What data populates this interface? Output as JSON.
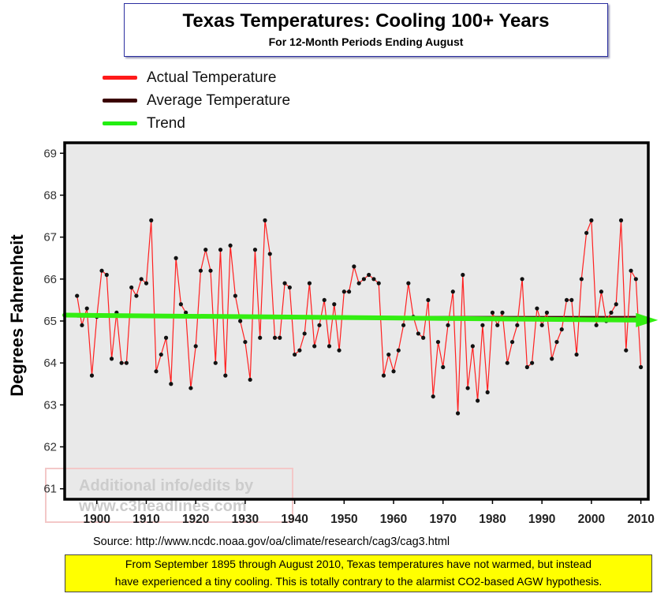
{
  "chart_data": {
    "type": "line",
    "title": "Texas Temperatures: Cooling 100+ Years",
    "subtitle": "For 12-Month Periods Ending August",
    "ylabel": "Degrees Fahrenheit",
    "xlabel": "",
    "ylim": [
      60.75,
      69.25
    ],
    "xlim": [
      1893.5,
      2011.5
    ],
    "yticks": [
      61,
      62,
      63,
      64,
      65,
      66,
      67,
      68,
      69
    ],
    "xticks": [
      1900,
      1910,
      1920,
      1930,
      1940,
      1950,
      1960,
      1970,
      1980,
      1990,
      2000,
      2010
    ],
    "grid": false,
    "legend_position": "top-left",
    "series": [
      {
        "name": "Actual Temperature",
        "color": "#ff2020",
        "x": [
          1896,
          1897,
          1898,
          1899,
          1900,
          1901,
          1902,
          1903,
          1904,
          1905,
          1906,
          1907,
          1908,
          1909,
          1910,
          1911,
          1912,
          1913,
          1914,
          1915,
          1916,
          1917,
          1918,
          1919,
          1920,
          1921,
          1922,
          1923,
          1924,
          1925,
          1926,
          1927,
          1928,
          1929,
          1930,
          1931,
          1932,
          1933,
          1934,
          1935,
          1936,
          1937,
          1938,
          1939,
          1940,
          1941,
          1942,
          1943,
          1944,
          1945,
          1946,
          1947,
          1948,
          1949,
          1950,
          1951,
          1952,
          1953,
          1954,
          1955,
          1956,
          1957,
          1958,
          1959,
          1960,
          1961,
          1962,
          1963,
          1964,
          1965,
          1966,
          1967,
          1968,
          1969,
          1970,
          1971,
          1972,
          1973,
          1974,
          1975,
          1976,
          1977,
          1978,
          1979,
          1980,
          1981,
          1982,
          1983,
          1984,
          1985,
          1986,
          1987,
          1988,
          1989,
          1990,
          1991,
          1992,
          1993,
          1994,
          1995,
          1996,
          1997,
          1998,
          1999,
          2000,
          2001,
          2002,
          2003,
          2004,
          2005,
          2006,
          2007,
          2008,
          2009,
          2010
        ],
        "values": [
          65.6,
          64.9,
          65.3,
          63.7,
          65.1,
          66.2,
          66.1,
          64.1,
          65.2,
          64.0,
          64.0,
          65.8,
          65.6,
          66.0,
          65.9,
          67.4,
          63.8,
          64.2,
          64.6,
          63.5,
          66.5,
          65.4,
          65.2,
          63.4,
          64.4,
          66.2,
          66.7,
          66.2,
          64.0,
          66.7,
          63.7,
          66.8,
          65.6,
          65.0,
          64.5,
          63.6,
          66.7,
          64.6,
          67.4,
          66.6,
          64.6,
          64.6,
          65.9,
          65.8,
          64.2,
          64.3,
          64.7,
          65.9,
          64.4,
          64.9,
          65.5,
          64.4,
          65.4,
          64.3,
          65.7,
          65.7,
          66.3,
          65.9,
          66.0,
          66.1,
          66.0,
          65.9,
          63.7,
          64.2,
          63.8,
          64.3,
          64.9,
          65.9,
          65.1,
          64.7,
          64.6,
          65.5,
          63.2,
          64.5,
          63.9,
          64.9,
          65.7,
          62.8,
          66.1,
          63.4,
          64.4,
          63.1,
          64.9,
          63.3,
          65.2,
          64.9,
          65.2,
          64.0,
          64.5,
          64.9,
          66.0,
          63.9,
          64.0,
          65.3,
          64.9,
          65.2,
          64.1,
          64.5,
          64.8,
          65.5,
          65.5,
          64.2,
          66.0,
          67.1,
          67.4,
          64.9,
          65.7,
          65.0,
          65.2,
          65.4,
          67.4,
          64.3,
          66.2,
          66.0,
          63.9
        ]
      },
      {
        "name": "Average Temperature",
        "color": "#3a0000",
        "x": [
          1896,
          2010
        ],
        "values": [
          65.1,
          65.1
        ]
      },
      {
        "name": "Trend",
        "color": "#33ee11",
        "x": [
          1893.5,
          2012.5
        ],
        "values": [
          65.14,
          65.02
        ]
      }
    ]
  },
  "watermark": {
    "line1": "Additional info/edits by",
    "line2": "www.c3headlines.com"
  },
  "source_text": "Source:  http://www.ncdc.noaa.gov/oa/climate/research/cag3/cag3.html",
  "note": {
    "line1": "From September 1895 through August 2010, Texas temperatures have not warmed, but instead",
    "line2": "have experienced a tiny cooling. This is totally contrary to the alarmist CO2-based AGW hypothesis."
  }
}
